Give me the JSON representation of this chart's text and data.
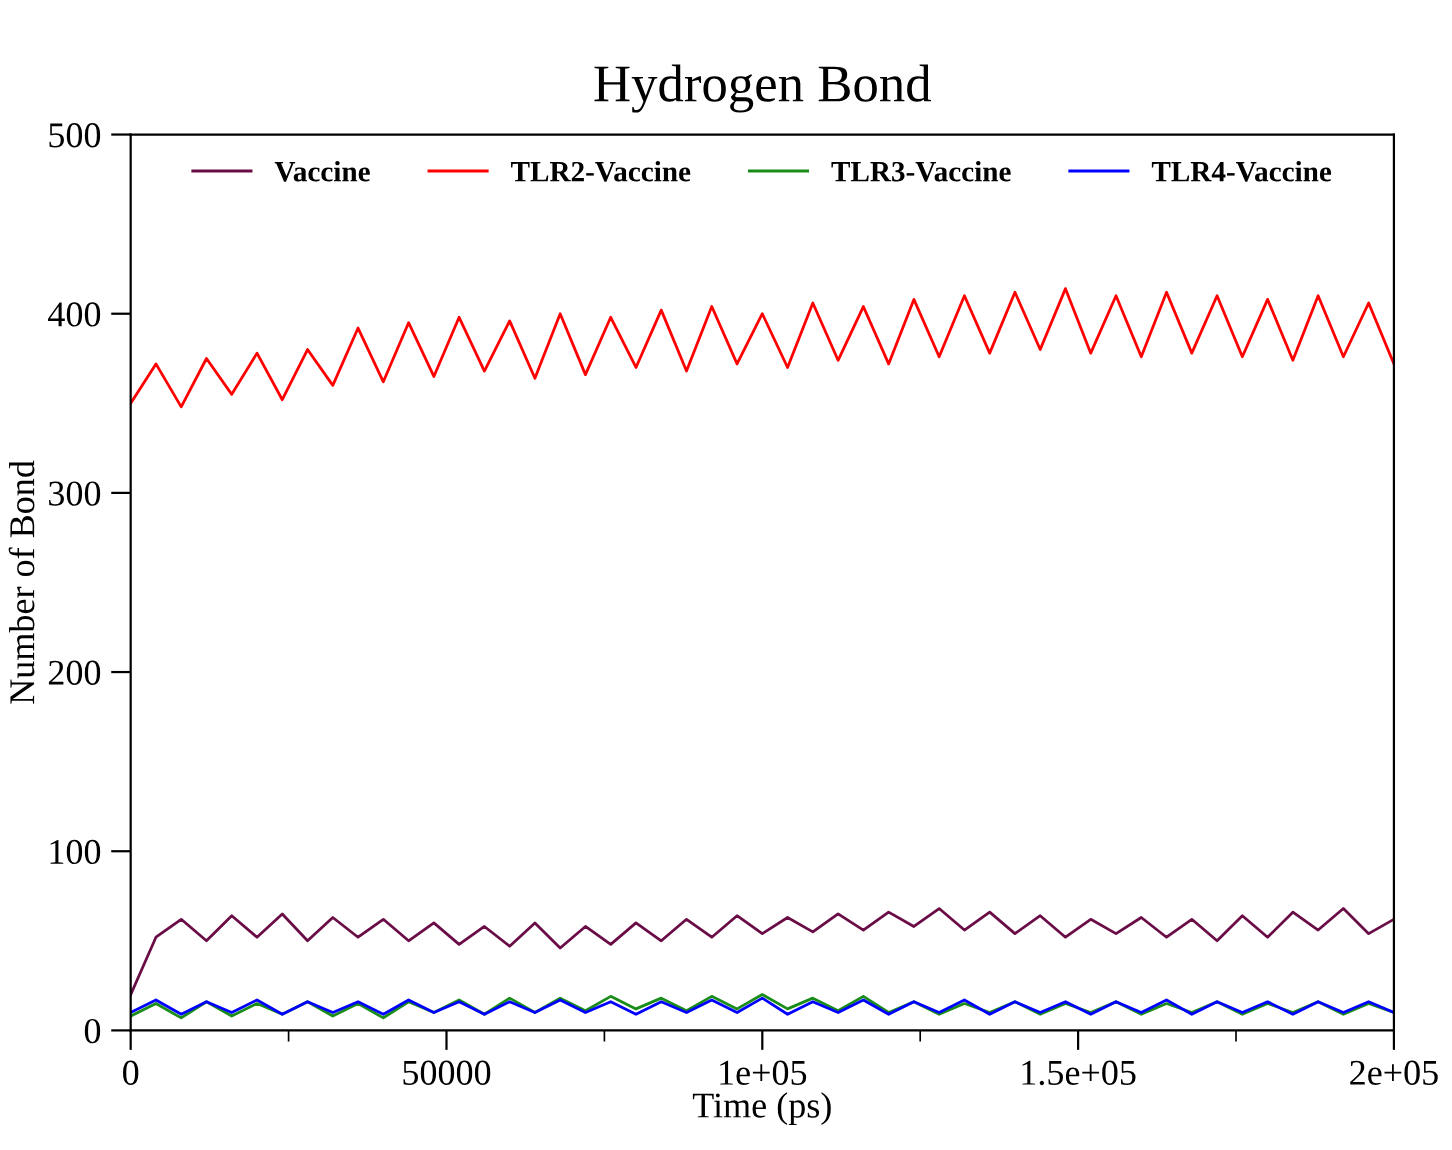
{
  "chart_data": {
    "type": "line",
    "title": "Hydrogen Bond",
    "xlabel": "Time (ps)",
    "ylabel": "Number of Bond",
    "x": [
      0,
      4000,
      8000,
      12000,
      16000,
      20000,
      24000,
      28000,
      32000,
      36000,
      40000,
      44000,
      48000,
      52000,
      56000,
      60000,
      64000,
      68000,
      72000,
      76000,
      80000,
      84000,
      88000,
      92000,
      96000,
      100000,
      104000,
      108000,
      112000,
      116000,
      120000,
      124000,
      128000,
      132000,
      136000,
      140000,
      144000,
      148000,
      152000,
      156000,
      160000,
      164000,
      168000,
      172000,
      176000,
      180000,
      184000,
      188000,
      192000,
      196000,
      200000
    ],
    "series": [
      {
        "name": "Vaccine",
        "color": "#6a0d47",
        "values": [
          20,
          52,
          62,
          50,
          64,
          52,
          65,
          50,
          63,
          52,
          62,
          50,
          60,
          48,
          58,
          47,
          60,
          46,
          58,
          48,
          60,
          50,
          62,
          52,
          64,
          54,
          63,
          55,
          65,
          56,
          66,
          58,
          68,
          56,
          66,
          54,
          64,
          52,
          62,
          54,
          63,
          52,
          62,
          50,
          64,
          52,
          66,
          56,
          68,
          54,
          62
        ]
      },
      {
        "name": "TLR2-Vaccine",
        "color": "#ff0000",
        "values": [
          350,
          372,
          348,
          375,
          355,
          378,
          352,
          380,
          360,
          392,
          362,
          395,
          365,
          398,
          368,
          396,
          364,
          400,
          366,
          398,
          370,
          402,
          368,
          404,
          372,
          400,
          370,
          406,
          374,
          404,
          372,
          408,
          376,
          410,
          378,
          412,
          380,
          414,
          378,
          410,
          376,
          412,
          378,
          410,
          376,
          408,
          374,
          410,
          376,
          406,
          372
        ]
      },
      {
        "name": "TLR3-Vaccine",
        "color": "#1a8c1a",
        "values": [
          8,
          15,
          7,
          16,
          8,
          15,
          9,
          16,
          8,
          15,
          7,
          16,
          10,
          17,
          9,
          18,
          10,
          18,
          11,
          19,
          12,
          18,
          11,
          19,
          12,
          20,
          12,
          18,
          11,
          19,
          10,
          16,
          9,
          15,
          10,
          16,
          9,
          15,
          10,
          16,
          9,
          15,
          10,
          16,
          9,
          15,
          10,
          16,
          9,
          15,
          10
        ]
      },
      {
        "name": "TLR4-Vaccine",
        "color": "#0000ff",
        "values": [
          10,
          17,
          9,
          16,
          10,
          17,
          9,
          16,
          10,
          16,
          9,
          17,
          10,
          16,
          9,
          16,
          10,
          17,
          10,
          16,
          9,
          16,
          10,
          17,
          10,
          18,
          9,
          16,
          10,
          17,
          9,
          16,
          10,
          17,
          9,
          16,
          10,
          16,
          9,
          16,
          10,
          17,
          9,
          16,
          10,
          16,
          9,
          16,
          10,
          16,
          10
        ]
      }
    ],
    "xlim": [
      0,
      200000
    ],
    "ylim": [
      0,
      500
    ],
    "xticks": [
      0,
      50000,
      {
        "value": 100000,
        "label": "1e+05"
      },
      {
        "value": 150000,
        "label": "1.5e+05"
      },
      {
        "value": 200000,
        "label": "2e+05"
      }
    ],
    "yticks": [
      0,
      100,
      200,
      300,
      400,
      500
    ],
    "legend": "top",
    "grid": false,
    "marker": "none",
    "line_style": "solid"
  }
}
